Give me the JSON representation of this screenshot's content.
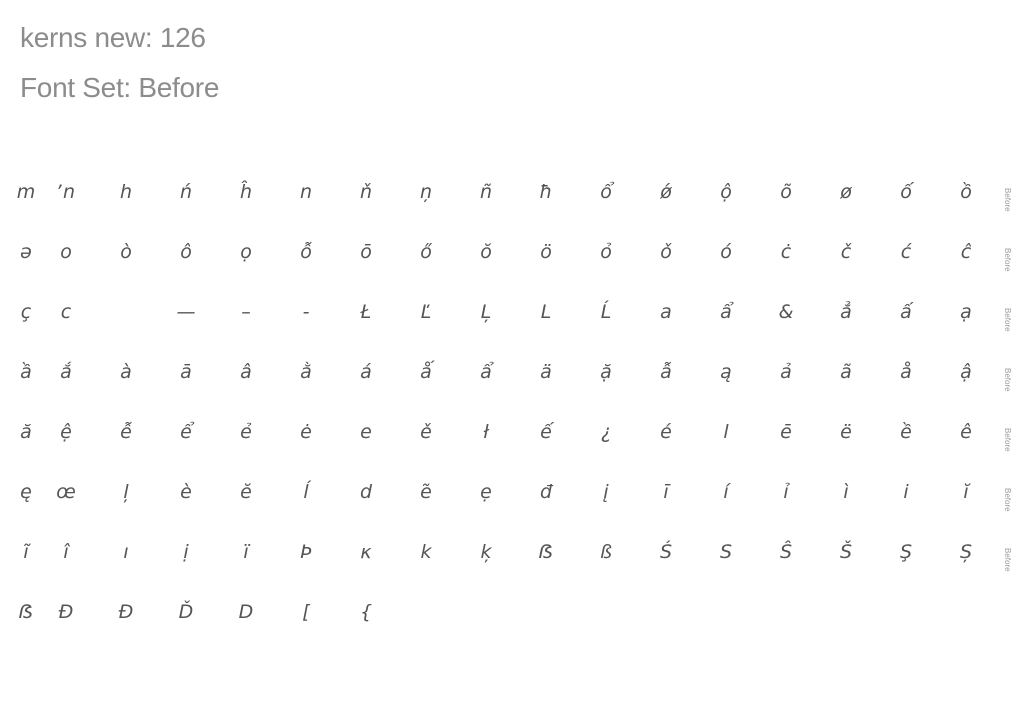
{
  "header": {
    "title": "kerns new: 126",
    "font_set": "Font Set: Before"
  },
  "row_tag": "Before",
  "rows": [
    [
      "m",
      "ʼn",
      "h",
      "ń",
      "ĥ",
      "n",
      "ň",
      "ņ",
      "ñ",
      "ħ",
      "ổ",
      "ǿ",
      "ộ",
      "õ",
      "ø",
      "ố",
      "ồ"
    ],
    [
      "ə",
      "o",
      "ò",
      "ô",
      "ọ",
      "ỗ",
      "ō",
      "ő",
      "ŏ",
      "ö",
      "ỏ",
      "ǒ",
      "ó",
      "ċ",
      "č",
      "ć",
      "ĉ"
    ],
    [
      "ç",
      "c",
      "",
      "—",
      "–",
      "-",
      "Ł",
      "Ľ",
      "Ļ",
      "L",
      "Ĺ",
      "a",
      "ẩ",
      "&",
      "ẳ",
      "ấ",
      "ạ"
    ],
    [
      "ầ",
      "ắ",
      "à",
      "ā",
      "â",
      "ằ",
      "á",
      "ǻ",
      "ẩ",
      "ä",
      "ặ",
      "ẫ",
      "ą",
      "ả",
      "ã",
      "å",
      "ậ"
    ],
    [
      "ă",
      "ệ",
      "ễ",
      "ể",
      "ẻ",
      "ė",
      "e",
      "ě",
      "ł",
      "ế",
      "¿",
      "é",
      "l",
      "ē",
      "ë",
      "ề",
      "ê"
    ],
    [
      "ę",
      "œ",
      "ļ",
      "è",
      "ĕ",
      "ĺ",
      "d",
      "ẽ",
      "ẹ",
      "đ",
      "į",
      "ī",
      "í",
      "ỉ",
      "ì",
      "i",
      "ĭ"
    ],
    [
      "ĩ",
      "î",
      "ı",
      "ị",
      "ï",
      "Þ",
      "κ",
      "k",
      "ķ",
      "ẞ",
      "ß",
      "Ś",
      "S",
      "Ŝ",
      "Š",
      "Ş",
      "Ș"
    ],
    [
      "ẞ",
      "Đ",
      "Đ",
      "Ď",
      "D",
      "[",
      "{"
    ]
  ]
}
